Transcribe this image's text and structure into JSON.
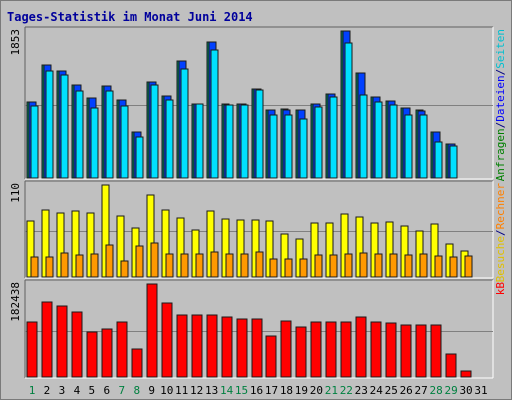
{
  "chart_data": {
    "type": "bar",
    "title": "Tages-Statistik im Monat Juni 2014",
    "x": [
      "1",
      "2",
      "3",
      "4",
      "5",
      "6",
      "7",
      "8",
      "9",
      "10",
      "11",
      "12",
      "13",
      "14",
      "15",
      "16",
      "17",
      "18",
      "19",
      "20",
      "21",
      "22",
      "23",
      "24",
      "25",
      "26",
      "27",
      "28",
      "29",
      "30",
      "31"
    ],
    "weekend_days": [
      "1",
      "7",
      "8",
      "14",
      "15",
      "21",
      "22",
      "28",
      "29"
    ],
    "panels": [
      {
        "name": "top",
        "ymax_label": "1853",
        "ymax": 1853,
        "right_labels": [
          {
            "text": "Anfragen",
            "color": "#008000"
          },
          {
            "text": "/",
            "color": "#000080"
          },
          {
            "text": "Dateien",
            "color": "#0000ff"
          },
          {
            "text": "/",
            "color": "#000080"
          },
          {
            "text": "Seiten",
            "color": "#00c0d0"
          }
        ],
        "series": [
          {
            "name": "Anfragen",
            "color": "#008060",
            "values": [
              953,
              1426,
              1345,
              1172,
              1008,
              1160,
              981,
              581,
              1215,
              1036,
              1471,
              938,
              1712,
              929,
              929,
              1124,
              856,
              866,
              856,
              933,
              1064,
              1853,
              1323,
              1021,
              976,
              880,
              851,
              581,
              423,
              0,
              0
            ]
          },
          {
            "name": "Dateien",
            "color": "#0040ff",
            "values": [
              953,
              1425,
              1345,
              1170,
              1006,
              1159,
              979,
              581,
              1214,
              1035,
              1470,
              936,
              1711,
              926,
              929,
              1120,
              852,
              863,
              853,
              930,
              1060,
              1853,
              1321,
              1019,
              973,
              877,
              849,
              580,
              423,
              0,
              0
            ]
          },
          {
            "name": "Seiten",
            "color": "#00e0ff",
            "values": [
              905,
              1347,
              1300,
              1092,
              885,
              1092,
              905,
              511,
              1172,
              977,
              1380,
              930,
              1611,
              918,
              918,
              1110,
              800,
              800,
              742,
              894,
              1015,
              1708,
              1045,
              962,
              917,
              800,
              800,
              460,
              406,
              0,
              0
            ]
          }
        ]
      },
      {
        "name": "middle",
        "ymax_label": "110",
        "ymax": 110,
        "right_labels": [
          {
            "text": "Besuche",
            "color": "#e0c000"
          },
          {
            "text": "/",
            "color": "#000080"
          },
          {
            "text": "Rechner",
            "color": "#ff8000"
          }
        ],
        "series": [
          {
            "name": "Besuche",
            "color": "#ffff00",
            "values": [
              67,
              80,
              76,
              79,
              77,
              110,
              73,
              59,
              98,
              80,
              71,
              56,
              79,
              69,
              68,
              68,
              67,
              52,
              45,
              65,
              64,
              75,
              72,
              65,
              66,
              61,
              55,
              63,
              40,
              31,
              0
            ]
          },
          {
            "name": "Rechner",
            "color": "#ff9900",
            "values": [
              24,
              24,
              29,
              26,
              28,
              38,
              19,
              37,
              41,
              27,
              27,
              28,
              30,
              27,
              28,
              30,
              22,
              22,
              21,
              26,
              26,
              28,
              29,
              27,
              27,
              26,
              28,
              25,
              24,
              25,
              0
            ]
          }
        ]
      },
      {
        "name": "bottom",
        "ymax_label": "182438",
        "ymax": 182438,
        "right_labels": [
          {
            "text": "kB",
            "color": "#ff0000"
          }
        ],
        "series": [
          {
            "name": "kB",
            "color": "#ff0000",
            "values": [
              107000,
              148000,
              140000,
              127000,
              88000,
              94000,
              107000,
              55000,
              182438,
              145000,
              121000,
              121000,
              121000,
              117000,
              114000,
              114000,
              80000,
              110000,
              98000,
              108000,
              108000,
              108000,
              117000,
              107000,
              105000,
              102000,
              102000,
              102000,
              46000,
              11000,
              0
            ]
          }
        ]
      }
    ]
  }
}
